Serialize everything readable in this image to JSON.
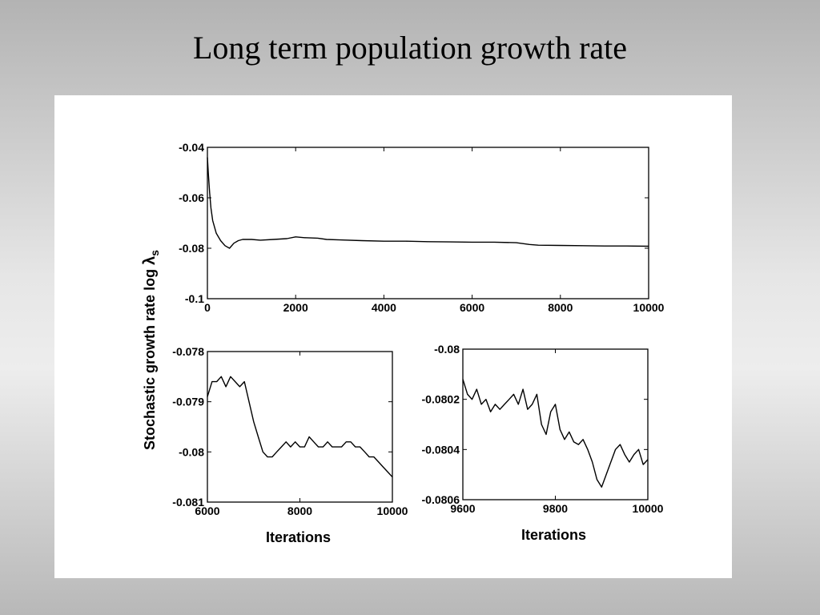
{
  "slide": {
    "title": "Long term population growth rate"
  },
  "chart_data": [
    {
      "id": "full",
      "type": "line",
      "xlabel": "",
      "ylabel": "Stochastic growth rate log λs",
      "xlim": [
        0,
        10000
      ],
      "ylim": [
        -0.1,
        -0.04
      ],
      "xticks": [
        0,
        2000,
        4000,
        6000,
        8000,
        10000
      ],
      "xtick_labels": [
        "0",
        "2000",
        "4000",
        "6000",
        "8000",
        "10000"
      ],
      "yticks": [
        -0.1,
        -0.08,
        -0.06,
        -0.04
      ],
      "ytick_labels": [
        "-0.1",
        "-0.08",
        "-0.06",
        "-0.04"
      ],
      "grid": false,
      "series": [
        {
          "x": [
            0,
            20,
            50,
            80,
            120,
            200,
            300,
            400,
            500,
            600,
            700,
            800,
            1000,
            1200,
            1500,
            1800,
            2000,
            2200,
            2500,
            2700,
            3000,
            3500,
            4000,
            4500,
            5000,
            5500,
            6000,
            6500,
            7000,
            7300,
            7500,
            8000,
            8500,
            9000,
            9500,
            10000
          ],
          "y": [
            -0.044,
            -0.05,
            -0.058,
            -0.064,
            -0.069,
            -0.074,
            -0.077,
            -0.079,
            -0.08,
            -0.078,
            -0.077,
            -0.0765,
            -0.0765,
            -0.0768,
            -0.0765,
            -0.0762,
            -0.0755,
            -0.0758,
            -0.076,
            -0.0765,
            -0.0767,
            -0.077,
            -0.0772,
            -0.0772,
            -0.0774,
            -0.0775,
            -0.0776,
            -0.0776,
            -0.0778,
            -0.0785,
            -0.0788,
            -0.0789,
            -0.079,
            -0.0791,
            -0.0791,
            -0.0792
          ]
        }
      ]
    },
    {
      "id": "zoom-6000",
      "type": "line",
      "xlabel": "Iterations",
      "ylabel": "",
      "xlim": [
        6000,
        10000
      ],
      "ylim": [
        -0.081,
        -0.078
      ],
      "xticks": [
        6000,
        8000,
        10000
      ],
      "xtick_labels": [
        "6000",
        "8000",
        "10000"
      ],
      "yticks": [
        -0.081,
        -0.08,
        -0.079,
        -0.078
      ],
      "ytick_labels": [
        "-0.081",
        "-0.08",
        "-0.079",
        "-0.078"
      ],
      "grid": false,
      "series": [
        {
          "x": [
            6000,
            6100,
            6200,
            6300,
            6400,
            6500,
            6600,
            6700,
            6800,
            6900,
            7000,
            7100,
            7200,
            7300,
            7400,
            7500,
            7600,
            7700,
            7800,
            7900,
            8000,
            8100,
            8200,
            8300,
            8400,
            8500,
            8600,
            8700,
            8800,
            8900,
            9000,
            9100,
            9200,
            9300,
            9400,
            9500,
            9600,
            9700,
            9800,
            9900,
            10000
          ],
          "y": [
            -0.0789,
            -0.0786,
            -0.0786,
            -0.0785,
            -0.0787,
            -0.0785,
            -0.0786,
            -0.0787,
            -0.0786,
            -0.079,
            -0.0794,
            -0.0797,
            -0.08,
            -0.0801,
            -0.0801,
            -0.08,
            -0.0799,
            -0.0798,
            -0.0799,
            -0.0798,
            -0.0799,
            -0.0799,
            -0.0797,
            -0.0798,
            -0.0799,
            -0.0799,
            -0.0798,
            -0.0799,
            -0.0799,
            -0.0799,
            -0.0798,
            -0.0798,
            -0.0799,
            -0.0799,
            -0.08,
            -0.0801,
            -0.0801,
            -0.0802,
            -0.0803,
            -0.0804,
            -0.0805
          ]
        }
      ]
    },
    {
      "id": "zoom-9600",
      "type": "line",
      "xlabel": "Iterations",
      "ylabel": "",
      "xlim": [
        9600,
        10000
      ],
      "ylim": [
        -0.0806,
        -0.08
      ],
      "xticks": [
        9600,
        9800,
        10000
      ],
      "xtick_labels": [
        "9600",
        "9800",
        "10000"
      ],
      "yticks": [
        -0.0806,
        -0.0804,
        -0.0802,
        -0.08
      ],
      "ytick_labels": [
        "-0.0806",
        "-0.0804",
        "-0.0802",
        "-0.08"
      ],
      "grid": false,
      "series": [
        {
          "x": [
            9600,
            9610,
            9620,
            9630,
            9640,
            9650,
            9660,
            9670,
            9680,
            9690,
            9700,
            9710,
            9720,
            9730,
            9740,
            9750,
            9760,
            9770,
            9780,
            9790,
            9800,
            9810,
            9820,
            9830,
            9840,
            9850,
            9860,
            9870,
            9880,
            9890,
            9900,
            9910,
            9920,
            9930,
            9940,
            9950,
            9960,
            9970,
            9980,
            9990,
            10000
          ],
          "y": [
            -0.08012,
            -0.08018,
            -0.0802,
            -0.08016,
            -0.08022,
            -0.0802,
            -0.08025,
            -0.08022,
            -0.08024,
            -0.08022,
            -0.0802,
            -0.08018,
            -0.08022,
            -0.08016,
            -0.08024,
            -0.08022,
            -0.08018,
            -0.0803,
            -0.08034,
            -0.08025,
            -0.08022,
            -0.08032,
            -0.08036,
            -0.08033,
            -0.08037,
            -0.08038,
            -0.08036,
            -0.0804,
            -0.08045,
            -0.08052,
            -0.08055,
            -0.0805,
            -0.08045,
            -0.0804,
            -0.08038,
            -0.08042,
            -0.08045,
            -0.08042,
            -0.0804,
            -0.08046,
            -0.08044
          ]
        }
      ]
    }
  ]
}
